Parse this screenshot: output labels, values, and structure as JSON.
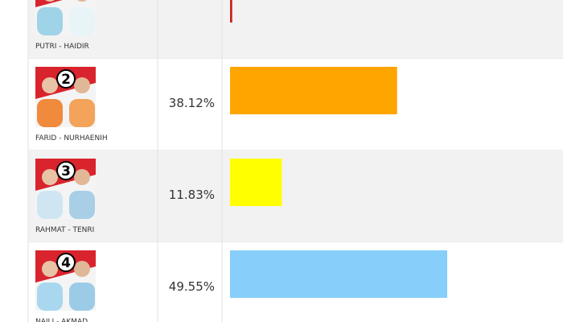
{
  "chart_data": {
    "type": "bar",
    "categories": [
      "PUTRI - HAIDIR",
      "FARID - NURHAENIH",
      "RAHMAT - TENRI",
      "NAILI - AKMAD"
    ],
    "badges": [
      null,
      "2",
      "3",
      "4"
    ],
    "values": [
      0.5,
      38.12,
      11.83,
      49.55
    ],
    "value_labels": [
      null,
      "38.12%",
      "11.83%",
      "49.55%"
    ],
    "colors": [
      "#cc1f1f",
      "#ffa500",
      "#ffff00",
      "#87cefa"
    ]
  }
}
